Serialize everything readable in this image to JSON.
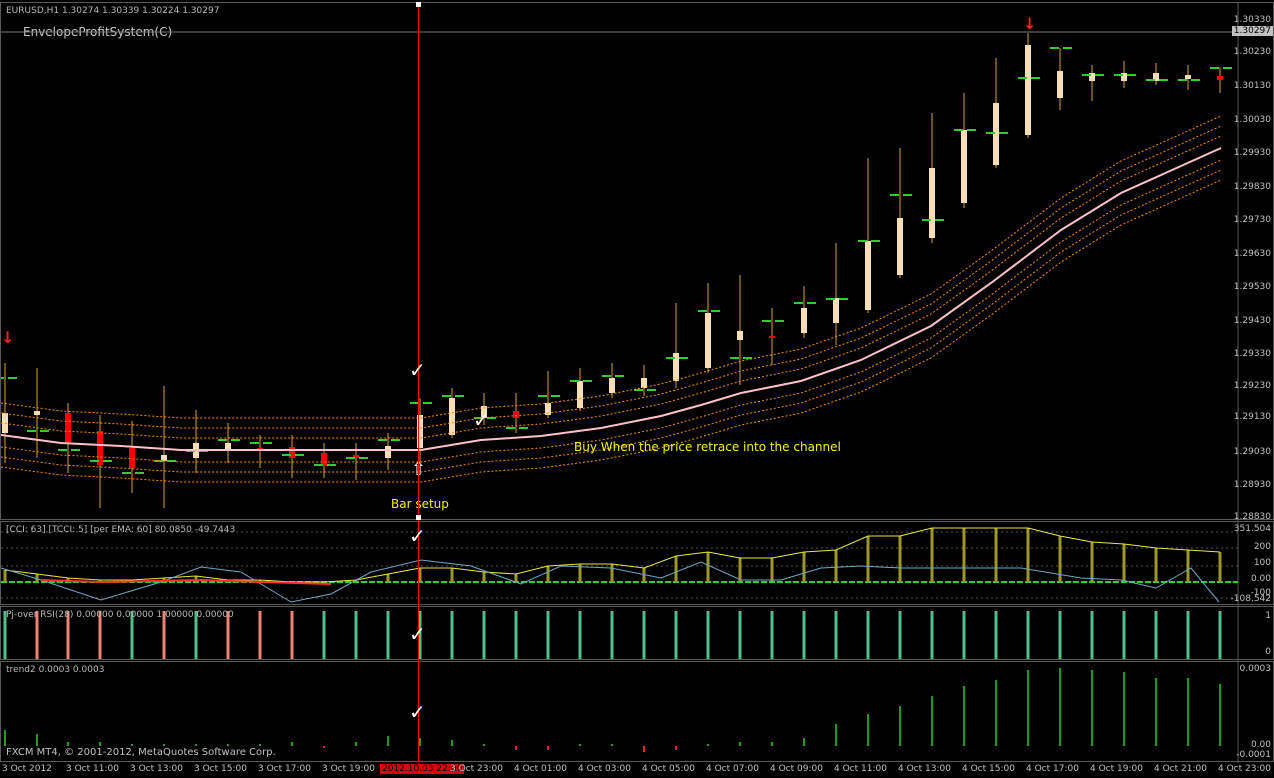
{
  "main": {
    "symbol_info": "EURUSD,H1  1.30274 1.30339 1.30224 1.30297",
    "indicator_name": "EnvelopeProfitSystem(C)",
    "price_labels": [
      "1.30330",
      "1.30297",
      "1.30230",
      "1.30130",
      "1.30030",
      "1.29930",
      "1.29830",
      "1.29730",
      "1.29630",
      "1.29530",
      "1.29430",
      "1.29330",
      "1.29230",
      "1.29130",
      "1.29030",
      "1.28930",
      "1.28830"
    ],
    "current_price": "1.30297",
    "annotation": "Buy When the price retrace into the channel",
    "bar_setup": "Bar setup"
  },
  "cci": {
    "title": "[CCI: 63] [TCCI: 5] [per EMA: 60]  80.0850 -49.7443",
    "labels": [
      "351.504",
      "200",
      "100",
      "0.00",
      "-100",
      "-108.542"
    ]
  },
  "pj": {
    "title": "Pj-over RSI(28) 0.00000 0.00000 1.00000 0.00000",
    "labels": [
      "1",
      "0"
    ]
  },
  "trend": {
    "title": "trend2 0.0003 0.0003",
    "labels": [
      "0.0003",
      "0.00",
      "-0.0001"
    ],
    "copyright": "FXCM MT4, © 2001-2012, MetaQuotes Software Corp."
  },
  "x_axis": {
    "labels": [
      "3 Oct 2012",
      "3 Oct 11:00",
      "3 Oct 13:00",
      "3 Oct 15:00",
      "3 Oct 17:00",
      "3 Oct 19:00",
      "2012.10.03 22:00",
      "3 Oct 23:00",
      "4 Oct 01:00",
      "4 Oct 03:00",
      "4 Oct 05:00",
      "4 Oct 07:00",
      "4 Oct 09:00",
      "4 Oct 11:00",
      "4 Oct 13:00",
      "4 Oct 15:00",
      "4 Oct 17:00",
      "4 Oct 19:00",
      "4 Oct 21:00",
      "4 Oct 23:00"
    ],
    "highlight": "2012.10.03 22:00"
  },
  "colors": {
    "bull": "#f5deb3",
    "bear": "#ff0000",
    "wick": "#daa520",
    "ma": "#ffc0cb",
    "envelope": "#ff8c00",
    "green": "#32cd32",
    "cursor": "#ff0000"
  }
}
